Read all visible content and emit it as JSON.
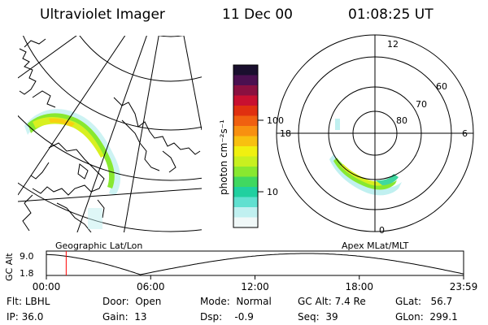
{
  "header": {
    "instrument": "Ultraviolet Imager",
    "date": "11 Dec 00",
    "time": "01:08:25 UT"
  },
  "colorbar": {
    "label": "photon cm⁻²s⁻¹",
    "ticks": [
      "100",
      "10"
    ],
    "scale": "log",
    "colors": [
      "#1a0f2e",
      "#4b1050",
      "#8a1040",
      "#c81030",
      "#e03010",
      "#f06010",
      "#f89010",
      "#f8c010",
      "#f0f010",
      "#c8f020",
      "#88e830",
      "#40d860",
      "#20d0a0",
      "#60e0d0",
      "#c0f0f0",
      "#f0f8f8"
    ]
  },
  "left_map": {
    "label": "Geographic Lat/Lon"
  },
  "right_map": {
    "label": "Apex MLat/MLT",
    "mlt_labels": {
      "top": "12",
      "left": "18",
      "right": "6",
      "bottom": "0"
    },
    "lat_labels": [
      "60",
      "70",
      "80"
    ]
  },
  "altitude_plot": {
    "ylabel": "GC Alt",
    "yticks": [
      "9.0",
      "1.8"
    ],
    "xticks": [
      "00:00",
      "06:00",
      "12:00",
      "18:00",
      "23:59"
    ],
    "current_time_marker_hours": 1.14,
    "marker_color": "#ff0000"
  },
  "status": {
    "filter_label": "Flt:",
    "filter_value": "LBHL",
    "ip_label": "IP:",
    "ip_value": "36.0",
    "door_label": "Door:",
    "door_value": "Open",
    "gain_label": "Gain:",
    "gain_value": "13",
    "mode_label": "Mode:",
    "mode_value": "Normal",
    "dsp_label": "Dsp:",
    "dsp_value": "-0.9",
    "gcalt_label": "GC Alt:",
    "gcalt_value": "7.4 Re",
    "seq_label": "Seq:",
    "seq_value": "39",
    "glat_label": "GLat:",
    "glat_value": "56.7",
    "glon_label": "GLon:",
    "glon_value": "299.1"
  }
}
